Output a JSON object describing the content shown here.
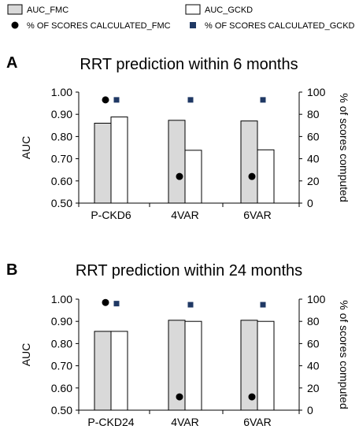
{
  "legend": [
    {
      "label": "AUC_FMC",
      "kind": "bar",
      "fill": "#d9d9d9"
    },
    {
      "label": "AUC_GCKD",
      "kind": "bar",
      "fill": "#ffffff"
    },
    {
      "label": "% OF SCORES CALCULATED_FMC",
      "kind": "circle",
      "fill": "#000000"
    },
    {
      "label": "% OF SCORES CALCULATED_GCKD",
      "kind": "square",
      "fill": "#1f3864"
    }
  ],
  "chart_data": [
    {
      "panel": "A",
      "type": "bar",
      "title": "RRT prediction within 6 months",
      "categories": [
        "P-CKD6",
        "4VAR",
        "6VAR"
      ],
      "ylabel": "AUC",
      "y2label": "% of scores computed",
      "ylim": [
        0.5,
        1.0
      ],
      "y2lim": [
        0,
        100
      ],
      "yticks": [
        "1.00",
        "0.90",
        "0.80",
        "0.70",
        "0.60",
        "0.50"
      ],
      "y2ticks": [
        "100",
        "80",
        "60",
        "40",
        "20",
        "0"
      ],
      "grid": false,
      "series": [
        {
          "name": "AUC_FMC",
          "axis": "left",
          "values": [
            0.86,
            0.873,
            0.87
          ]
        },
        {
          "name": "AUC_GCKD",
          "axis": "left",
          "values": [
            0.888,
            0.738,
            0.74
          ]
        },
        {
          "name": "% OF SCORES CALCULATED_FMC",
          "axis": "right",
          "values": [
            93,
            24,
            24
          ]
        },
        {
          "name": "% OF SCORES CALCULATED_GCKD",
          "axis": "right",
          "values": [
            93,
            93,
            93
          ]
        }
      ]
    },
    {
      "panel": "B",
      "type": "bar",
      "title": "RRT prediction within 24 months",
      "categories": [
        "P-CKD24",
        "4VAR",
        "6VAR"
      ],
      "ylabel": "AUC",
      "y2label": "% of scores computed",
      "ylim": [
        0.5,
        1.0
      ],
      "y2lim": [
        0,
        100
      ],
      "yticks": [
        "1.00",
        "0.90",
        "0.80",
        "0.70",
        "0.60",
        "0.50"
      ],
      "y2ticks": [
        "100",
        "80",
        "60",
        "40",
        "20",
        "0"
      ],
      "grid": false,
      "series": [
        {
          "name": "AUC_FMC",
          "axis": "left",
          "values": [
            0.855,
            0.905,
            0.905
          ]
        },
        {
          "name": "AUC_GCKD",
          "axis": "left",
          "values": [
            0.855,
            0.9,
            0.9
          ]
        },
        {
          "name": "% OF SCORES CALCULATED_FMC",
          "axis": "right",
          "values": [
            97,
            12,
            12
          ]
        },
        {
          "name": "% OF SCORES CALCULATED_GCKD",
          "axis": "right",
          "values": [
            96,
            95,
            95
          ]
        }
      ]
    }
  ]
}
